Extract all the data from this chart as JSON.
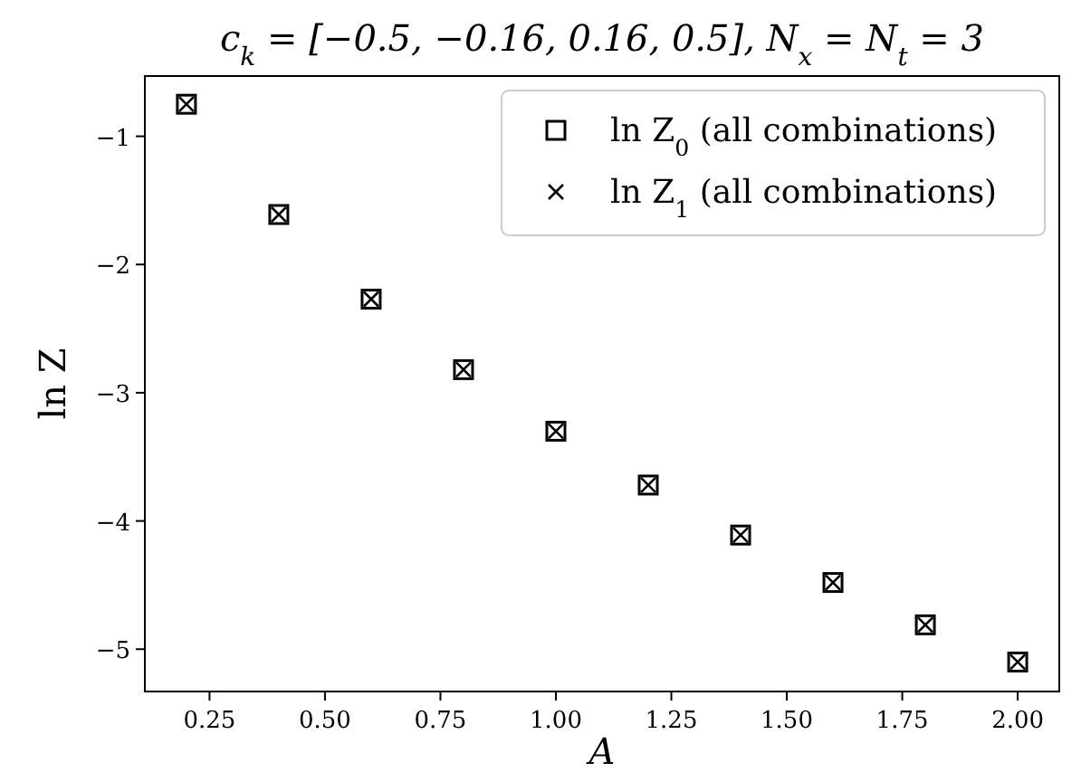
{
  "chart_data": {
    "type": "scatter",
    "title": "c$_{k}$ = [−0.5, −0.16, 0.16, 0.5],      N$_{x}$ = N$_{t}$ = 3",
    "xlabel": "A",
    "ylabel": "ln Z",
    "x": [
      0.2,
      0.4,
      0.6,
      0.8,
      1.0,
      1.2,
      1.4,
      1.6,
      1.8,
      2.0
    ],
    "series": [
      {
        "name": "ln Z$_{0}$ (all combinations)",
        "color": "#000000",
        "marker": "square",
        "values": [
          -0.75,
          -1.61,
          -2.27,
          -2.82,
          -3.3,
          -3.72,
          -4.11,
          -4.48,
          -4.81,
          -5.1
        ]
      },
      {
        "name": "ln Z$_{1}$ (all combinations)",
        "color": "#000000",
        "marker": "cross",
        "values": [
          -0.75,
          -1.61,
          -2.27,
          -2.82,
          -3.3,
          -3.72,
          -4.11,
          -4.48,
          -4.81,
          -5.1
        ]
      }
    ],
    "xlim": [
      0.11,
      2.09
    ],
    "xticks": [
      {
        "value": 0.25,
        "label": "0.25"
      },
      {
        "value": 0.5,
        "label": "0.50"
      },
      {
        "value": 0.75,
        "label": "0.75"
      },
      {
        "value": 1.0,
        "label": "1.00"
      },
      {
        "value": 1.25,
        "label": "1.25"
      },
      {
        "value": 1.5,
        "label": "1.50"
      },
      {
        "value": 1.75,
        "label": "1.75"
      },
      {
        "value": 2.0,
        "label": "2.00"
      }
    ],
    "ylim": [
      -5.33,
      -0.53
    ],
    "yticks": [
      {
        "value": -5,
        "label": "−5"
      },
      {
        "value": -4,
        "label": "−4"
      },
      {
        "value": -3,
        "label": "−3"
      },
      {
        "value": -2,
        "label": "−2"
      },
      {
        "value": -1,
        "label": "−1"
      }
    ],
    "grid": false,
    "legend": "top right"
  }
}
